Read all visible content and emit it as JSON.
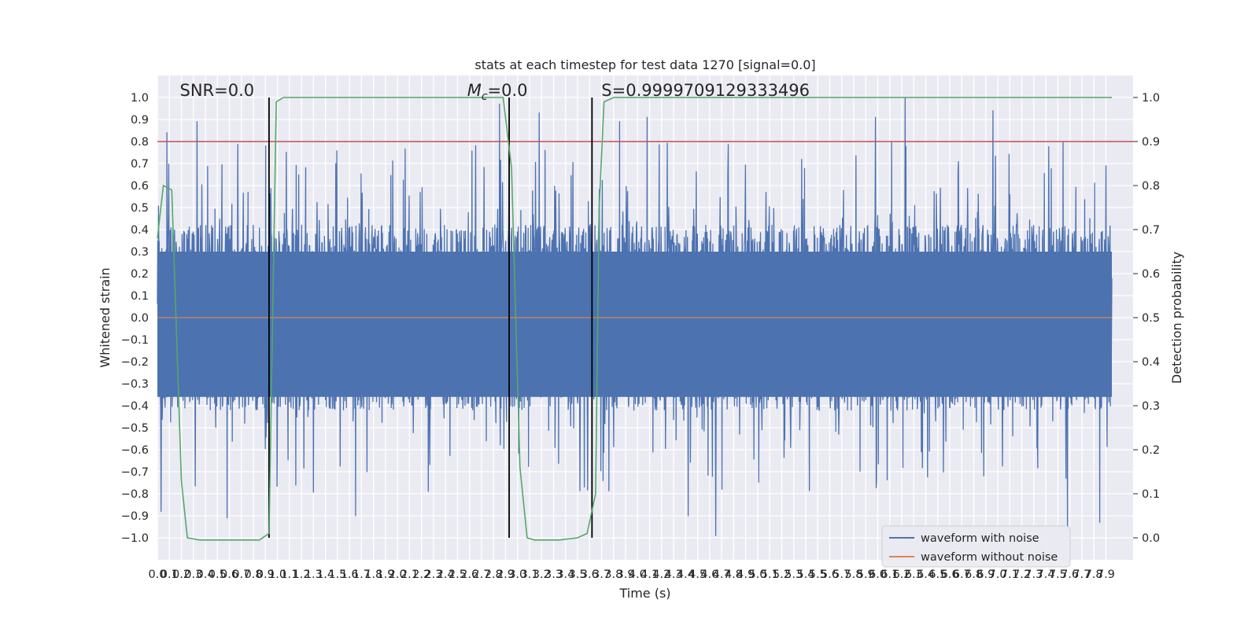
{
  "chart_data": {
    "type": "line",
    "title": "stats at each timestep for test data 1270 [signal=0.0]",
    "xlabel": "Time (s)",
    "ylabel": "Whitened strain",
    "ylabel_right": "Detection probability",
    "xlim": [
      0.0,
      7.95
    ],
    "ylim": [
      -1.1,
      1.1
    ],
    "ylim_right": [
      -0.05,
      1.05
    ],
    "grid": true,
    "legend_position": "lower-right",
    "x_ticks": [
      0.0,
      0.1,
      0.2,
      0.3,
      0.4,
      0.5,
      0.6,
      0.7,
      0.8,
      0.9,
      1.0,
      1.1,
      1.2,
      1.3,
      1.4,
      1.5,
      1.6,
      1.7,
      1.8,
      1.9,
      2.0,
      2.1,
      2.2,
      2.3,
      2.4,
      2.5,
      2.6,
      2.7,
      2.8,
      2.9,
      3.0,
      3.1,
      3.2,
      3.3,
      3.4,
      3.5,
      3.6,
      3.7,
      3.8,
      3.9,
      4.0,
      4.1,
      4.2,
      4.3,
      4.4,
      4.5,
      4.6,
      4.7,
      4.8,
      4.9,
      5.0,
      5.1,
      5.2,
      5.3,
      5.4,
      5.5,
      5.6,
      5.7,
      5.8,
      5.9,
      6.0,
      6.1,
      6.2,
      6.3,
      6.4,
      6.5,
      6.6,
      6.7,
      6.8,
      6.9,
      7.0,
      7.1,
      7.2,
      7.3,
      7.4,
      7.5,
      7.6,
      7.7,
      7.8,
      7.9
    ],
    "x_tick_labels": [
      "0.0",
      "0.1",
      "0.2",
      "0.3",
      "0.4",
      "0.5",
      "0.6",
      "0.7",
      "0.8",
      "0.9",
      "1.0",
      "1.1",
      "1.2",
      "1.3",
      "1.4",
      "1.5",
      "1.6",
      "1.7",
      "1.8",
      "1.9",
      "2.0",
      "2.1",
      "2.2",
      "2.3",
      "2.4",
      "2.5",
      "2.6",
      "2.7",
      "2.8",
      "2.9",
      "3.0",
      "3.1",
      "3.2",
      "3.3",
      "3.4",
      "3.5",
      "3.6",
      "3.7",
      "3.8",
      "3.9",
      "4.0",
      "4.1",
      "4.2",
      "4.3",
      "4.4",
      "4.5",
      "4.6",
      "4.7",
      "4.8",
      "4.9",
      "5.0",
      "5.1",
      "5.2",
      "5.3",
      "5.4",
      "5.5",
      "5.6",
      "5.7",
      "5.8",
      "5.9",
      "6.0",
      "6.1",
      "6.2",
      "6.3",
      "6.4",
      "6.5",
      "6.6",
      "6.7",
      "6.8",
      "6.9",
      "7.0",
      "7.1",
      "7.2",
      "7.3",
      "7.4",
      "7.5",
      "7.6",
      "7.7",
      "7.8",
      "7.9"
    ],
    "y_ticks": [
      -1.0,
      -0.9,
      -0.8,
      -0.7,
      -0.6,
      -0.5,
      -0.4,
      -0.3,
      -0.2,
      -0.1,
      0.0,
      0.1,
      0.2,
      0.3,
      0.4,
      0.5,
      0.6,
      0.7,
      0.8,
      0.9,
      1.0
    ],
    "y_tick_labels": [
      "−1.0",
      "−0.9",
      "−0.8",
      "−0.7",
      "−0.6",
      "−0.5",
      "−0.4",
      "−0.3",
      "−0.2",
      "−0.1",
      "0.0",
      "0.1",
      "0.2",
      "0.3",
      "0.4",
      "0.5",
      "0.6",
      "0.7",
      "0.8",
      "0.9",
      "1.0"
    ],
    "y_ticks_right": [
      0.0,
      0.1,
      0.2,
      0.3,
      0.4,
      0.5,
      0.6,
      0.7,
      0.8,
      0.9,
      1.0
    ],
    "y_tick_labels_right": [
      "0.0",
      "0.1",
      "0.2",
      "0.3",
      "0.4",
      "0.5",
      "0.6",
      "0.7",
      "0.8",
      "0.9",
      "1.0"
    ],
    "series": [
      {
        "name": "waveform with noise",
        "color": "#4c72b0",
        "style": "dense-noise",
        "x_range": [
          0.0,
          7.95
        ],
        "typical_amplitude": 0.4,
        "extremes": [
          {
            "x": 0.08,
            "y": 0.84
          },
          {
            "x": 0.33,
            "y": 0.89
          },
          {
            "x": 0.58,
            "y": -0.91
          },
          {
            "x": 0.03,
            "y": -0.88
          },
          {
            "x": 2.85,
            "y": 0.97
          },
          {
            "x": 3.18,
            "y": 0.93
          },
          {
            "x": 3.85,
            "y": 0.89
          },
          {
            "x": 4.08,
            "y": 0.91
          },
          {
            "x": 4.65,
            "y": -0.99
          },
          {
            "x": 5.98,
            "y": 0.91
          },
          {
            "x": 6.23,
            "y": 1.0
          },
          {
            "x": 6.96,
            "y": 0.94
          },
          {
            "x": 7.58,
            "y": -0.96
          },
          {
            "x": 7.85,
            "y": -0.93
          },
          {
            "x": 1.65,
            "y": -0.9
          },
          {
            "x": 4.42,
            "y": -0.9
          }
        ]
      },
      {
        "name": "waveform without noise",
        "color": "#dd8452",
        "x": [
          0.0,
          7.95
        ],
        "y": [
          0.0,
          0.0
        ]
      },
      {
        "name": "detection probability",
        "axis": "right",
        "color": "#55a868",
        "x": [
          0.0,
          0.05,
          0.12,
          0.2,
          0.25,
          0.35,
          0.5,
          0.7,
          0.85,
          0.93,
          0.99,
          1.05,
          1.5,
          2.0,
          2.5,
          2.88,
          2.95,
          3.02,
          3.08,
          3.14,
          3.2,
          3.35,
          3.5,
          3.58,
          3.65,
          3.68,
          3.72,
          3.8,
          4.5,
          5.5,
          6.5,
          7.5,
          7.95
        ],
        "y": [
          0.68,
          0.8,
          0.79,
          0.13,
          0.0,
          -0.005,
          -0.005,
          -0.005,
          -0.005,
          0.01,
          0.99,
          1.0,
          1.0,
          1.0,
          1.0,
          1.0,
          0.84,
          0.16,
          0.0,
          -0.005,
          -0.005,
          -0.005,
          0.0,
          0.01,
          0.1,
          0.75,
          0.99,
          1.0,
          1.0,
          1.0,
          1.0,
          1.0,
          1.0
        ]
      }
    ],
    "threshold_line": {
      "axis": "right",
      "y": 0.9,
      "color": "#c44e52"
    },
    "vertical_markers": [
      {
        "x": 0.93,
        "y0": -1.0,
        "y1": 1.0,
        "color": "#000000"
      },
      {
        "x": 2.93,
        "y0": -1.0,
        "y1": 1.0,
        "color": "#000000"
      },
      {
        "x": 3.62,
        "y0": -1.0,
        "y1": 1.0,
        "color": "#000000"
      }
    ],
    "annotations": [
      {
        "text": "SNR=0.0",
        "x": 0.2,
        "y": 1.0
      },
      {
        "text": "M",
        "sub": "c",
        "rest": "=0.0",
        "x": 2.6,
        "y": 1.0
      },
      {
        "text": "S=0.9999709129333496",
        "x": 3.6,
        "y": 1.0
      }
    ],
    "legend": [
      "waveform with noise",
      "waveform without noise"
    ]
  }
}
